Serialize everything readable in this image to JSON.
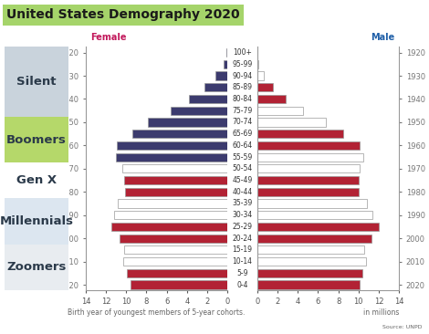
{
  "chart_data": {
    "type": "bar",
    "orientation": "horizontal",
    "title": "United States Demography 2020",
    "categories": [
      "0-4",
      "5-9",
      "10-14",
      "15-19",
      "20-24",
      "25-29",
      "30-34",
      "35-39",
      "40-44",
      "45-49",
      "50-54",
      "55-59",
      "60-64",
      "65-69",
      "70-74",
      "75-79",
      "80-84",
      "85-89",
      "90-94",
      "95-99",
      "100+"
    ],
    "birth_year_labels": [
      2020,
      null,
      2010,
      null,
      2000,
      null,
      1990,
      null,
      1980,
      null,
      1970,
      null,
      1960,
      null,
      1950,
      null,
      1940,
      null,
      1930,
      null,
      1920
    ],
    "generations": [
      "Silent",
      "Boomers",
      "Gen X",
      "Millennials",
      "Zoomers"
    ],
    "series": [
      {
        "name": "Female",
        "values": [
          9.6,
          9.9,
          10.3,
          10.2,
          10.7,
          11.5,
          11.2,
          10.8,
          10.1,
          10.2,
          10.4,
          11.0,
          10.9,
          9.4,
          7.9,
          5.6,
          3.8,
          2.3,
          1.2,
          0.4,
          0.1
        ],
        "colors": [
          "#b22234",
          "#b22234",
          "#ffffff",
          "#ffffff",
          "#b22234",
          "#b22234",
          "#ffffff",
          "#ffffff",
          "#b22234",
          "#b22234",
          "#ffffff",
          "#3c3b6e",
          "#3c3b6e",
          "#3c3b6e",
          "#3c3b6e",
          "#3c3b6e",
          "#3c3b6e",
          "#3c3b6e",
          "#3c3b6e",
          "#3c3b6e",
          "#3c3b6e"
        ]
      },
      {
        "name": "Male",
        "values": [
          10.1,
          10.4,
          10.7,
          10.6,
          11.3,
          12.0,
          11.4,
          10.8,
          10.0,
          10.0,
          10.1,
          10.5,
          10.1,
          8.5,
          6.8,
          4.5,
          2.8,
          1.5,
          0.6,
          0.1,
          0.02
        ],
        "colors": [
          "#b22234",
          "#b22234",
          "#ffffff",
          "#ffffff",
          "#b22234",
          "#b22234",
          "#ffffff",
          "#ffffff",
          "#b22234",
          "#b22234",
          "#ffffff",
          "#ffffff",
          "#b22234",
          "#b22234",
          "#ffffff",
          "#ffffff",
          "#b22234",
          "#b22234",
          "#ffffff",
          "#ffffff",
          "#b22234"
        ]
      }
    ],
    "xlim": [
      0,
      14
    ],
    "xticks": [
      0,
      2,
      4,
      6,
      8,
      10,
      12,
      14
    ],
    "x_label": "Birth year of youngest members of 5-year cohorts.",
    "unit_label": "in millions",
    "source": "Source: UNPD",
    "grid": false
  }
}
